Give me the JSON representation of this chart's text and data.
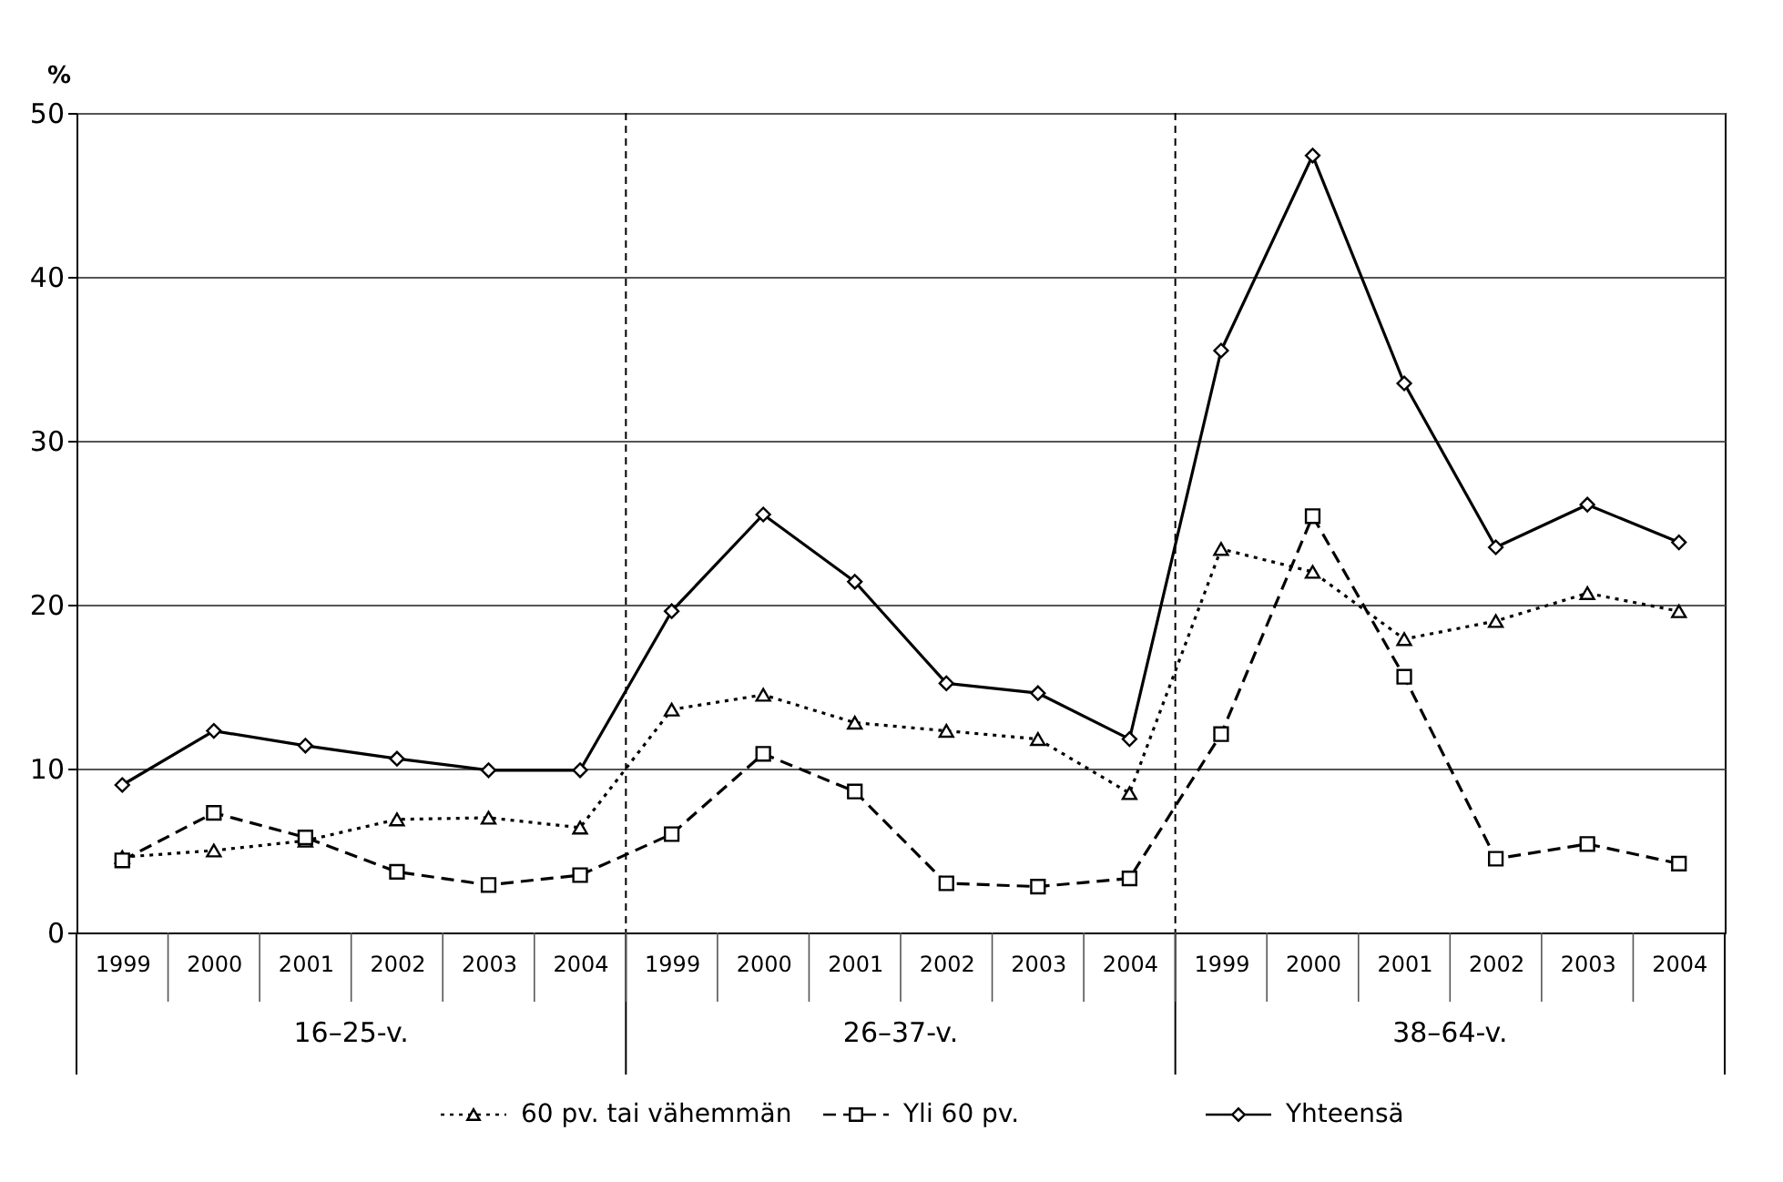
{
  "chart_data": {
    "type": "line",
    "ylabel": "%",
    "categories": [
      "1999",
      "2000",
      "2001",
      "2002",
      "2003",
      "2004",
      "1999",
      "2000",
      "2001",
      "2002",
      "2003",
      "2004",
      "1999",
      "2000",
      "2001",
      "2002",
      "2003",
      "2004"
    ],
    "annotations": [
      "16–25-v.",
      "26–37-v.",
      "38–64-v."
    ],
    "series": [
      {
        "name": "60 pv. tai vähemmän",
        "color": "#000000",
        "marker": "triangle",
        "line_style": "dotted",
        "values": [
          4.6,
          5.0,
          5.6,
          6.9,
          7.0,
          6.4,
          13.6,
          14.5,
          12.8,
          12.3,
          11.8,
          8.5,
          23.4,
          22.0,
          17.9,
          19.0,
          20.7,
          19.6
        ]
      },
      {
        "name": "Yli 60 pv.",
        "color": "#000000",
        "marker": "square",
        "line_style": "dashed",
        "values": [
          4.4,
          7.3,
          5.8,
          3.7,
          2.9,
          3.5,
          6.0,
          10.9,
          8.6,
          3.0,
          2.8,
          3.3,
          12.1,
          25.4,
          15.6,
          4.5,
          5.4,
          4.2
        ]
      },
      {
        "name": "Yhteensä",
        "color": "#000000",
        "marker": "diamond",
        "line_style": "solid",
        "values": [
          9.0,
          12.3,
          11.4,
          10.6,
          9.9,
          9.9,
          19.6,
          25.5,
          21.4,
          15.2,
          14.6,
          11.8,
          35.5,
          47.4,
          33.5,
          23.5,
          26.1,
          23.8
        ]
      }
    ],
    "ylim": [
      0,
      50
    ],
    "yticks": [
      0,
      10,
      20,
      30,
      40,
      50
    ],
    "grid": "y",
    "legend": "bottom"
  }
}
